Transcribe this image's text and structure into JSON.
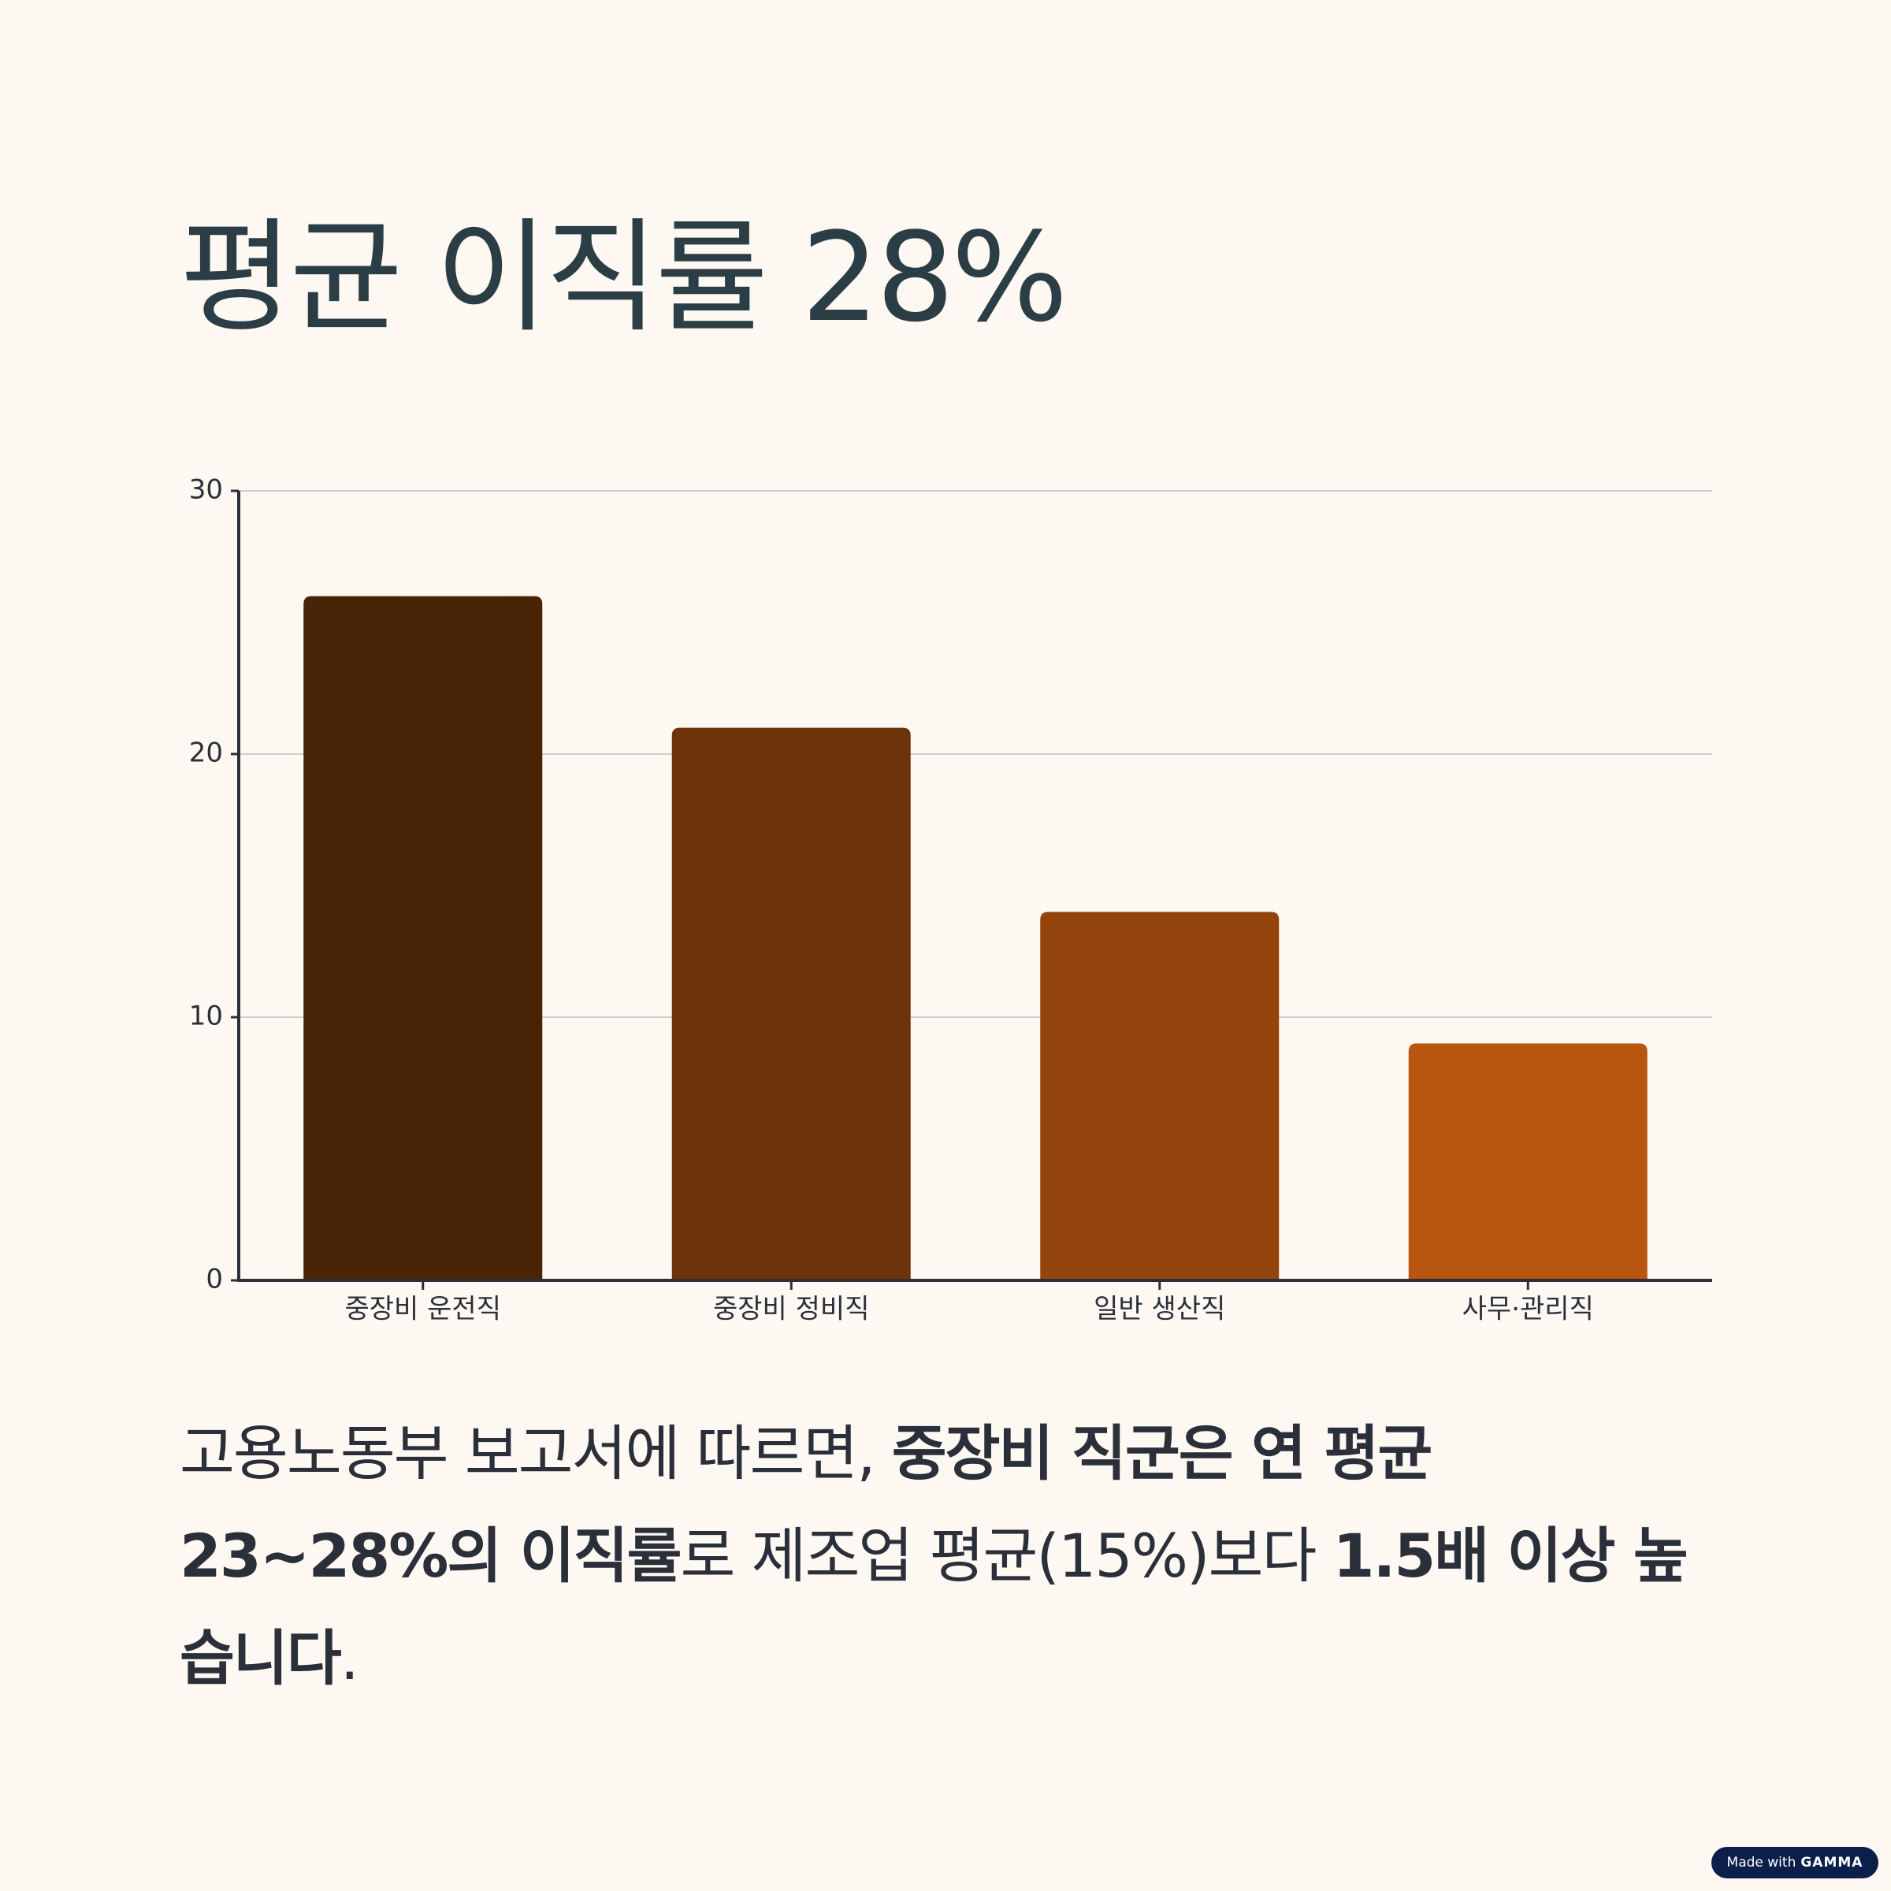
{
  "title": "평균 이직률 28%",
  "chart_data": {
    "type": "bar",
    "categories": [
      "중장비 운전직",
      "중장비 정비직",
      "일반 생산직",
      "사무·관리직"
    ],
    "values": [
      26,
      21,
      14,
      9
    ],
    "colors": [
      "#482306",
      "#6e3209",
      "#94440d",
      "#b8560f"
    ],
    "ylim": [
      0,
      30
    ],
    "yticks": [
      0,
      10,
      20,
      30
    ],
    "grid": true
  },
  "paragraph": {
    "segments": [
      {
        "text": "고용노동부 보고서에 따르면, ",
        "bold": false
      },
      {
        "text": "중장비 직군은 연 평균 23~28%의 이직률",
        "bold": true
      },
      {
        "text": "로 제조업 평균(15%)보다 ",
        "bold": false
      },
      {
        "text": "1.5배 이상 높습니다",
        "bold": true
      },
      {
        "text": ".",
        "bold": false
      }
    ]
  },
  "badge": {
    "text": "Made with",
    "brand": "GAMMA"
  }
}
